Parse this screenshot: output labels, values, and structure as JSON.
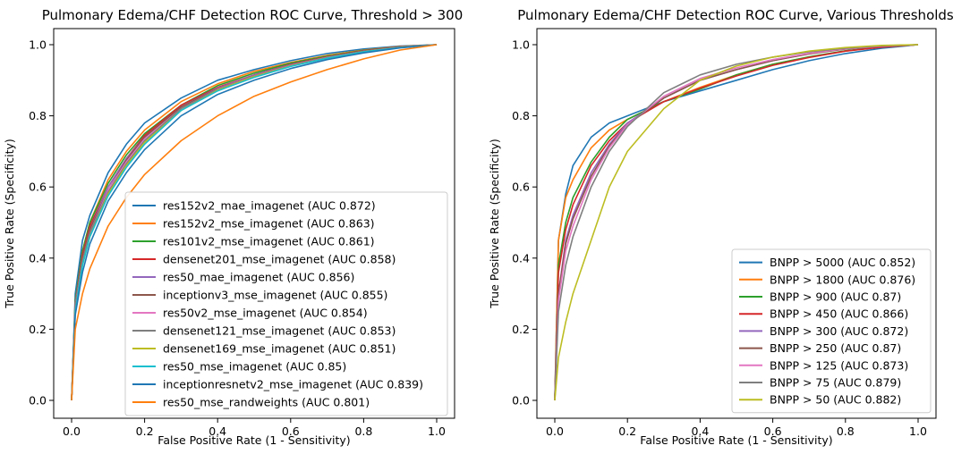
{
  "chart_data": [
    {
      "type": "line",
      "title": "Pulmonary Edema/CHF Detection ROC Curve, Threshold > 300",
      "xlabel": "False Positive Rate (1 - Sensitivity)",
      "ylabel": "True Positive Rate (Specificity)",
      "xlim": [
        0.0,
        1.0
      ],
      "ylim": [
        0.0,
        1.0
      ],
      "xticks": [
        "0.0",
        "0.2",
        "0.4",
        "0.6",
        "0.8",
        "1.0"
      ],
      "yticks": [
        "0.0",
        "0.2",
        "0.4",
        "0.6",
        "0.8",
        "1.0"
      ],
      "grid": false,
      "legend_position": "lower-right",
      "x": [
        0.0,
        0.01,
        0.03,
        0.05,
        0.1,
        0.15,
        0.2,
        0.3,
        0.4,
        0.5,
        0.6,
        0.7,
        0.8,
        0.9,
        1.0
      ],
      "series": [
        {
          "name": "res152v2_mae_imagenet (AUC 0.872)",
          "color": "#1f77b4",
          "values": [
            0.0,
            0.3,
            0.45,
            0.52,
            0.64,
            0.72,
            0.78,
            0.85,
            0.9,
            0.93,
            0.955,
            0.975,
            0.988,
            0.996,
            1.0
          ]
        },
        {
          "name": "res152v2_mse_imagenet (AUC 0.863)",
          "color": "#ff7f0e",
          "values": [
            0.0,
            0.28,
            0.42,
            0.5,
            0.62,
            0.7,
            0.76,
            0.84,
            0.89,
            0.925,
            0.95,
            0.97,
            0.985,
            0.995,
            1.0
          ]
        },
        {
          "name": "res101v2_mse_imagenet (AUC 0.861)",
          "color": "#2ca02c",
          "values": [
            0.0,
            0.28,
            0.42,
            0.5,
            0.61,
            0.69,
            0.75,
            0.83,
            0.885,
            0.92,
            0.948,
            0.968,
            0.984,
            0.994,
            1.0
          ]
        },
        {
          "name": "densenet201_mse_imagenet (AUC 0.858)",
          "color": "#d62728",
          "values": [
            0.0,
            0.27,
            0.41,
            0.49,
            0.6,
            0.68,
            0.745,
            0.83,
            0.88,
            0.915,
            0.945,
            0.966,
            0.983,
            0.994,
            1.0
          ]
        },
        {
          "name": "res50_mae_imagenet (AUC 0.856)",
          "color": "#9467bd",
          "values": [
            0.0,
            0.27,
            0.4,
            0.48,
            0.6,
            0.68,
            0.74,
            0.825,
            0.878,
            0.915,
            0.944,
            0.965,
            0.982,
            0.993,
            1.0
          ]
        },
        {
          "name": "inceptionv3_mse_imagenet (AUC 0.855)",
          "color": "#8c564b",
          "values": [
            0.0,
            0.26,
            0.4,
            0.48,
            0.59,
            0.675,
            0.74,
            0.825,
            0.876,
            0.913,
            0.943,
            0.965,
            0.982,
            0.993,
            1.0
          ]
        },
        {
          "name": "res50v2_mse_imagenet (AUC 0.854)",
          "color": "#e377c2",
          "values": [
            0.0,
            0.26,
            0.39,
            0.47,
            0.59,
            0.67,
            0.735,
            0.82,
            0.875,
            0.912,
            0.942,
            0.964,
            0.981,
            0.993,
            1.0
          ]
        },
        {
          "name": "densenet121_mse_imagenet (AUC 0.853)",
          "color": "#7f7f7f",
          "values": [
            0.0,
            0.26,
            0.39,
            0.47,
            0.585,
            0.665,
            0.73,
            0.82,
            0.874,
            0.911,
            0.941,
            0.963,
            0.981,
            0.993,
            1.0
          ]
        },
        {
          "name": "densenet169_mse_imagenet (AUC 0.851)",
          "color": "#bcbd22",
          "values": [
            0.0,
            0.25,
            0.38,
            0.46,
            0.58,
            0.66,
            0.725,
            0.815,
            0.872,
            0.91,
            0.94,
            0.962,
            0.98,
            0.992,
            1.0
          ]
        },
        {
          "name": "res50_mse_imagenet (AUC 0.85)",
          "color": "#17becf",
          "values": [
            0.0,
            0.25,
            0.38,
            0.46,
            0.575,
            0.655,
            0.72,
            0.815,
            0.87,
            0.908,
            0.939,
            0.962,
            0.98,
            0.992,
            1.0
          ]
        },
        {
          "name": "inceptionresnetv2_mse_imagenet (AUC 0.839)",
          "color": "#1f77b4",
          "values": [
            0.0,
            0.24,
            0.36,
            0.44,
            0.56,
            0.64,
            0.705,
            0.8,
            0.86,
            0.9,
            0.933,
            0.958,
            0.977,
            0.991,
            1.0
          ]
        },
        {
          "name": "res50_mse_randweights (AUC 0.801)",
          "color": "#ff7f0e",
          "values": [
            0.0,
            0.2,
            0.3,
            0.37,
            0.49,
            0.57,
            0.635,
            0.73,
            0.8,
            0.855,
            0.895,
            0.93,
            0.96,
            0.985,
            1.0
          ]
        }
      ]
    },
    {
      "type": "line",
      "title": "Pulmonary Edema/CHF Detection ROC Curve, Various Thresholds",
      "xlabel": "False Positive Rate (1 - Sensitivity)",
      "ylabel": "True Positive Rate (Specificity)",
      "xlim": [
        0.0,
        1.0
      ],
      "ylim": [
        0.0,
        1.0
      ],
      "xticks": [
        "0.0",
        "0.2",
        "0.4",
        "0.6",
        "0.8",
        "1.0"
      ],
      "yticks": [
        "0.0",
        "0.2",
        "0.4",
        "0.6",
        "0.8",
        "1.0"
      ],
      "grid": false,
      "legend_position": "lower-right",
      "x": [
        0.0,
        0.01,
        0.03,
        0.05,
        0.1,
        0.15,
        0.2,
        0.3,
        0.4,
        0.5,
        0.6,
        0.7,
        0.8,
        0.9,
        1.0
      ],
      "series": [
        {
          "name": "BNPP > 5000 (AUC 0.852)",
          "color": "#1f77b4",
          "values": [
            0.0,
            0.45,
            0.58,
            0.66,
            0.74,
            0.78,
            0.8,
            0.84,
            0.87,
            0.9,
            0.93,
            0.955,
            0.975,
            0.99,
            1.0
          ]
        },
        {
          "name": "BNPP > 1800 (AUC 0.876)",
          "color": "#ff7f0e",
          "values": [
            0.0,
            0.45,
            0.57,
            0.62,
            0.71,
            0.76,
            0.79,
            0.84,
            0.88,
            0.915,
            0.945,
            0.965,
            0.982,
            0.994,
            1.0
          ]
        },
        {
          "name": "BNPP > 900 (AUC 0.87)",
          "color": "#2ca02c",
          "values": [
            0.0,
            0.38,
            0.5,
            0.57,
            0.67,
            0.74,
            0.79,
            0.84,
            0.875,
            0.915,
            0.945,
            0.966,
            0.983,
            0.994,
            1.0
          ]
        },
        {
          "name": "BNPP > 450 (AUC 0.866)",
          "color": "#d62728",
          "values": [
            0.0,
            0.36,
            0.48,
            0.55,
            0.66,
            0.73,
            0.78,
            0.84,
            0.878,
            0.912,
            0.942,
            0.964,
            0.982,
            0.993,
            1.0
          ]
        },
        {
          "name": "BNPP > 300 (AUC 0.872)",
          "color": "#9467bd",
          "values": [
            0.0,
            0.3,
            0.45,
            0.52,
            0.64,
            0.72,
            0.78,
            0.85,
            0.9,
            0.93,
            0.955,
            0.975,
            0.988,
            0.996,
            1.0
          ]
        },
        {
          "name": "BNPP > 250 (AUC 0.87)",
          "color": "#8c564b",
          "values": [
            0.0,
            0.3,
            0.44,
            0.51,
            0.63,
            0.715,
            0.775,
            0.85,
            0.9,
            0.93,
            0.955,
            0.974,
            0.988,
            0.996,
            1.0
          ]
        },
        {
          "name": "BNPP > 125 (AUC 0.873)",
          "color": "#e377c2",
          "values": [
            0.0,
            0.28,
            0.42,
            0.49,
            0.62,
            0.71,
            0.775,
            0.855,
            0.905,
            0.935,
            0.958,
            0.976,
            0.989,
            0.996,
            1.0
          ]
        },
        {
          "name": "BNPP > 75 (AUC 0.879)",
          "color": "#7f7f7f",
          "values": [
            0.0,
            0.25,
            0.38,
            0.46,
            0.6,
            0.7,
            0.77,
            0.865,
            0.915,
            0.945,
            0.965,
            0.98,
            0.99,
            0.997,
            1.0
          ]
        },
        {
          "name": "BNPP > 50 (AUC 0.882)",
          "color": "#bcbd22",
          "values": [
            0.0,
            0.12,
            0.22,
            0.3,
            0.45,
            0.6,
            0.7,
            0.82,
            0.9,
            0.94,
            0.965,
            0.982,
            0.992,
            0.998,
            1.0
          ]
        }
      ]
    }
  ]
}
